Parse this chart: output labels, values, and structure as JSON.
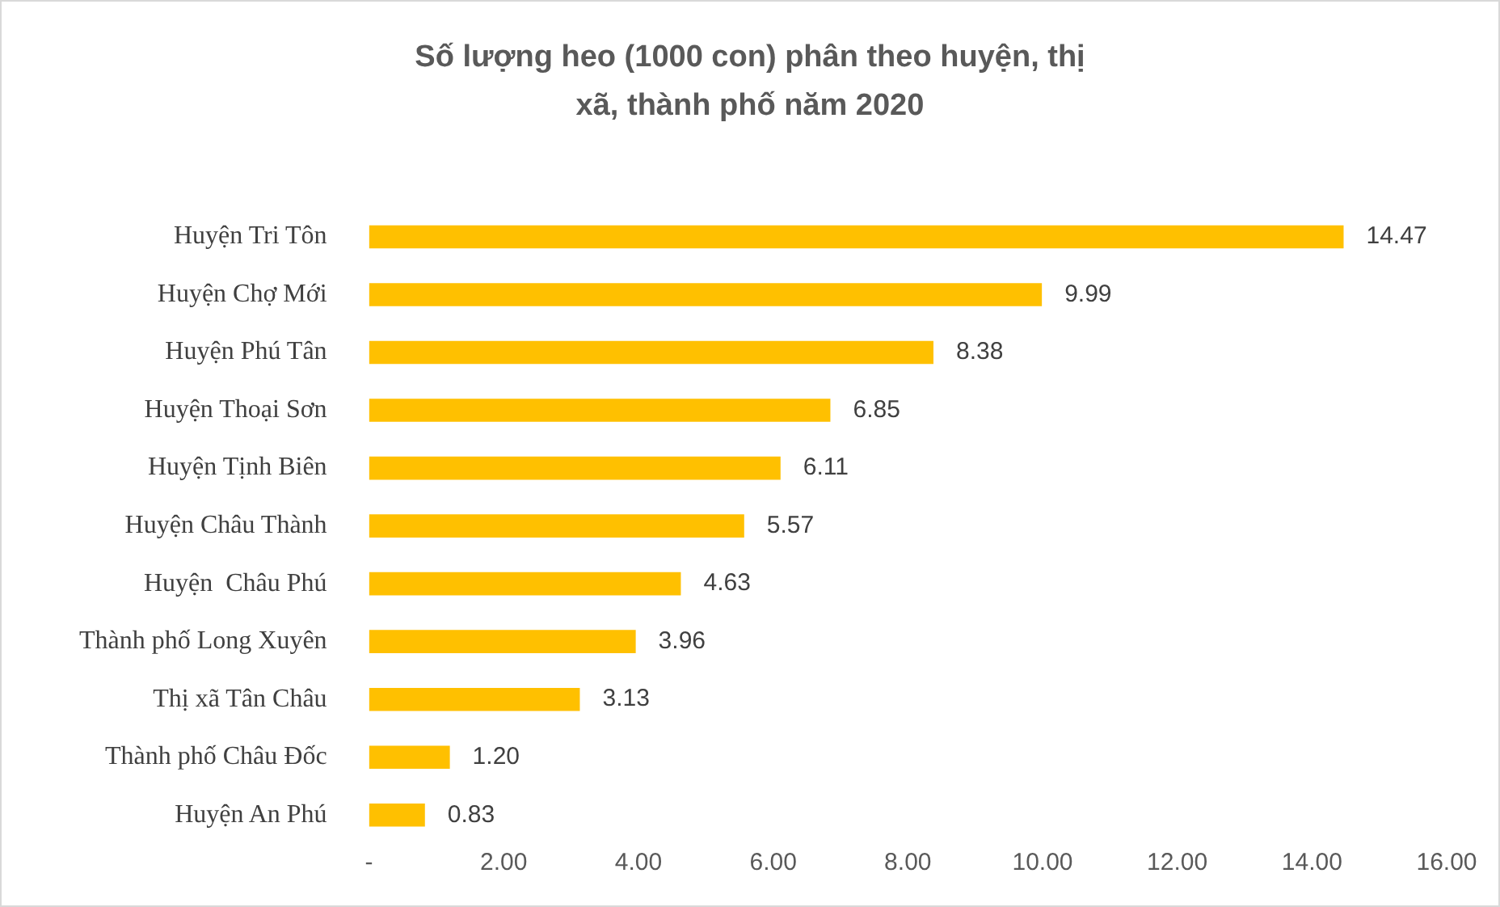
{
  "chart_data": {
    "type": "bar",
    "orientation": "horizontal",
    "title": "Số lượng heo (1000 con) phân theo huyện, thị xã, thành phố năm 2020",
    "categories": [
      "Huyện Tri Tôn",
      "Huyện Chợ Mới",
      "Huyện Phú Tân",
      "Huyện Thoại Sơn",
      "Huyện Tịnh Biên",
      "Huyện Châu Thành",
      "Huyện  Châu Phú",
      "Thành phố Long Xuyên",
      "Thị xã Tân Châu",
      "Thành phố Châu Đốc",
      "Huyện An Phú"
    ],
    "values": [
      14.47,
      9.99,
      8.38,
      6.85,
      6.11,
      5.57,
      4.63,
      3.96,
      3.13,
      1.2,
      0.83
    ],
    "value_labels": [
      "14.47",
      "9.99",
      "8.38",
      "6.85",
      "6.11",
      "5.57",
      "4.63",
      "3.96",
      "3.13",
      "1.20",
      "0.83"
    ],
    "color": "#ffc000",
    "xlim": [
      0,
      16
    ],
    "xticks": [
      {
        "value": 0,
        "label": "-"
      },
      {
        "value": 2,
        "label": "2.00"
      },
      {
        "value": 4,
        "label": "4.00"
      },
      {
        "value": 6,
        "label": "6.00"
      },
      {
        "value": 8,
        "label": "8.00"
      },
      {
        "value": 10,
        "label": "10.00"
      },
      {
        "value": 12,
        "label": "12.00"
      },
      {
        "value": 14,
        "label": "14.00"
      },
      {
        "value": 16,
        "label": "16.00"
      }
    ],
    "grid": false,
    "legend": false
  }
}
